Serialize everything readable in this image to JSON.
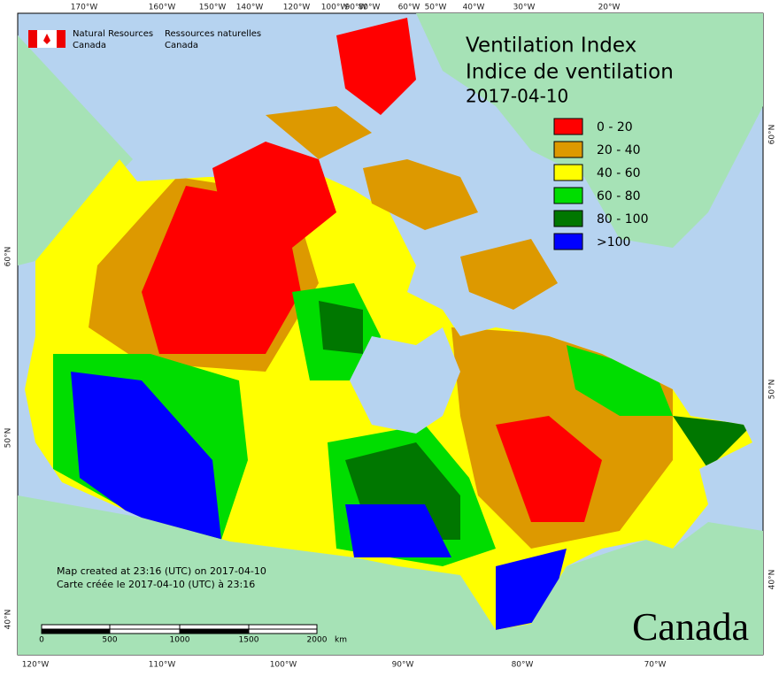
{
  "header": {
    "agency_en": [
      "Natural Resources",
      "Canada"
    ],
    "agency_fr": [
      "Ressources naturelles",
      "Canada"
    ]
  },
  "title": [
    "Ventilation Index",
    "Indice de ventilation",
    "2017-04-10"
  ],
  "legend": [
    {
      "label": "0 - 20",
      "color": "#ff0000"
    },
    {
      "label": "20 - 40",
      "color": "#dd9900"
    },
    {
      "label": "40 - 60",
      "color": "#ffff00"
    },
    {
      "label": "60 - 80",
      "color": "#00dd00"
    },
    {
      "label": "80 - 100",
      "color": "#007700"
    },
    {
      "label": ">100",
      "color": "#0000ff"
    }
  ],
  "notes": [
    "Map created at 23:16 (UTC) on 2017-04-10",
    "Carte créée le 2017-04-10 (UTC) à 23:16"
  ],
  "scale": {
    "labels": [
      "0",
      "500",
      "1000",
      "1500",
      "2000"
    ],
    "unit": "km"
  },
  "graticule": {
    "top": [
      "170°W",
      "160°W",
      "150°W",
      "140°W",
      "120°W",
      "100°W",
      "90°W",
      "80°W",
      "60°W",
      "50°W",
      "40°W",
      "30°W",
      "20°W"
    ],
    "bottom": [
      "120°W",
      "110°W",
      "100°W",
      "90°W",
      "80°W",
      "70°W"
    ],
    "left": [
      "60°N",
      "50°N",
      "40°N"
    ],
    "right": [
      "60°N",
      "50°N",
      "40°N"
    ]
  },
  "wordmark": "Canada"
}
